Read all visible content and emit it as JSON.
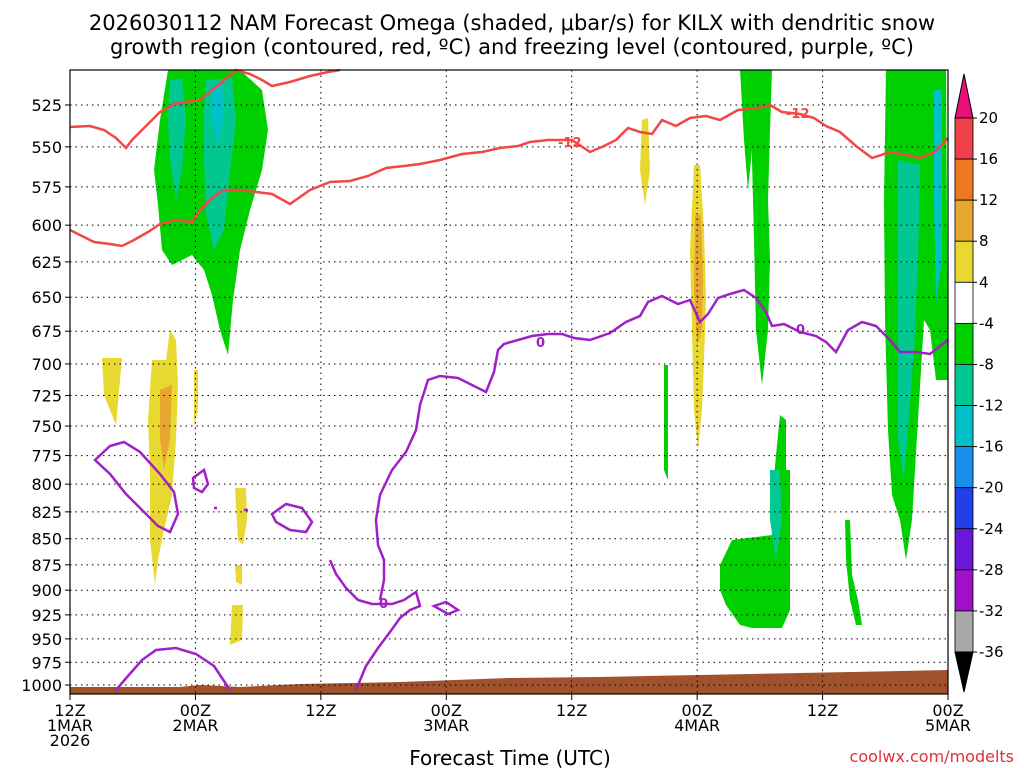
{
  "chart_data": {
    "type": "time-height cross section",
    "title_line1": "2026030112 NAM Forecast Omega (shaded, μbar/s) for KILX with dendritic snow",
    "title_line2": "growth region (contoured, red, ºC) and freezing level (contoured, purple, ºC)",
    "xlabel": "Forecast Time (UTC)",
    "credit": "coolwx.com/modelts",
    "x_ticks": [
      {
        "hour": 0,
        "line1": "12Z",
        "line2": "1MAR",
        "line3": "2026"
      },
      {
        "hour": 12,
        "line1": "00Z",
        "line2": "2MAR",
        "line3": ""
      },
      {
        "hour": 24,
        "line1": "12Z",
        "line2": "",
        "line3": ""
      },
      {
        "hour": 36,
        "line1": "00Z",
        "line2": "3MAR",
        "line3": ""
      },
      {
        "hour": 48,
        "line1": "12Z",
        "line2": "",
        "line3": ""
      },
      {
        "hour": 60,
        "line1": "00Z",
        "line2": "4MAR",
        "line3": ""
      },
      {
        "hour": 72,
        "line1": "12Z",
        "line2": "",
        "line3": ""
      },
      {
        "hour": 84,
        "line1": "00Z",
        "line2": "5MAR",
        "line3": ""
      }
    ],
    "xlim": [
      0,
      84
    ],
    "y_ticks": [
      "525",
      "550",
      "575",
      "600",
      "625",
      "650",
      "675",
      "700",
      "725",
      "750",
      "775",
      "800",
      "825",
      "850",
      "875",
      "900",
      "925",
      "950",
      "975",
      "1000"
    ],
    "ylim_hPa": [
      1010,
      505
    ],
    "colorbar": {
      "labels": [
        "20",
        "16",
        "12",
        "8",
        "4",
        "-4",
        "-8",
        "-12",
        "-16",
        "-20",
        "-24",
        "-28",
        "-32",
        "-36"
      ],
      "bins": [
        {
          "range": "16 to 20",
          "color": "#f0404a"
        },
        {
          "range": "12 to 16",
          "color": "#f07820"
        },
        {
          "range": "8 to 12",
          "color": "#e8a830"
        },
        {
          "range": "4 to 8",
          "color": "#e8d830"
        },
        {
          "range": "-4 to 4",
          "color": "#ffffff"
        },
        {
          "range": "-8 to -4",
          "color": "#00d000"
        },
        {
          "range": "-12 to -8",
          "color": "#00c890"
        },
        {
          "range": "-16 to -12",
          "color": "#00c0c8"
        },
        {
          "range": "-20 to -16",
          "color": "#1890f0"
        },
        {
          "range": "-24 to -20",
          "color": "#2040e8"
        },
        {
          "range": "-28 to -24",
          "color": "#6a18d8"
        },
        {
          "range": "-32 to -28",
          "color": "#a010c8"
        },
        {
          "range": "-36 to -32",
          "color": "#a8a8a8"
        }
      ],
      "over_color": "#e8107a",
      "under_color": "#000000"
    },
    "contours": {
      "dgz_label": "-12",
      "freezing_label": "0",
      "dgz_color": "#f04848",
      "freezing_color": "#a020c8"
    },
    "terrain_color": "#a0522d",
    "terrain_top_hPa": 1005
  }
}
